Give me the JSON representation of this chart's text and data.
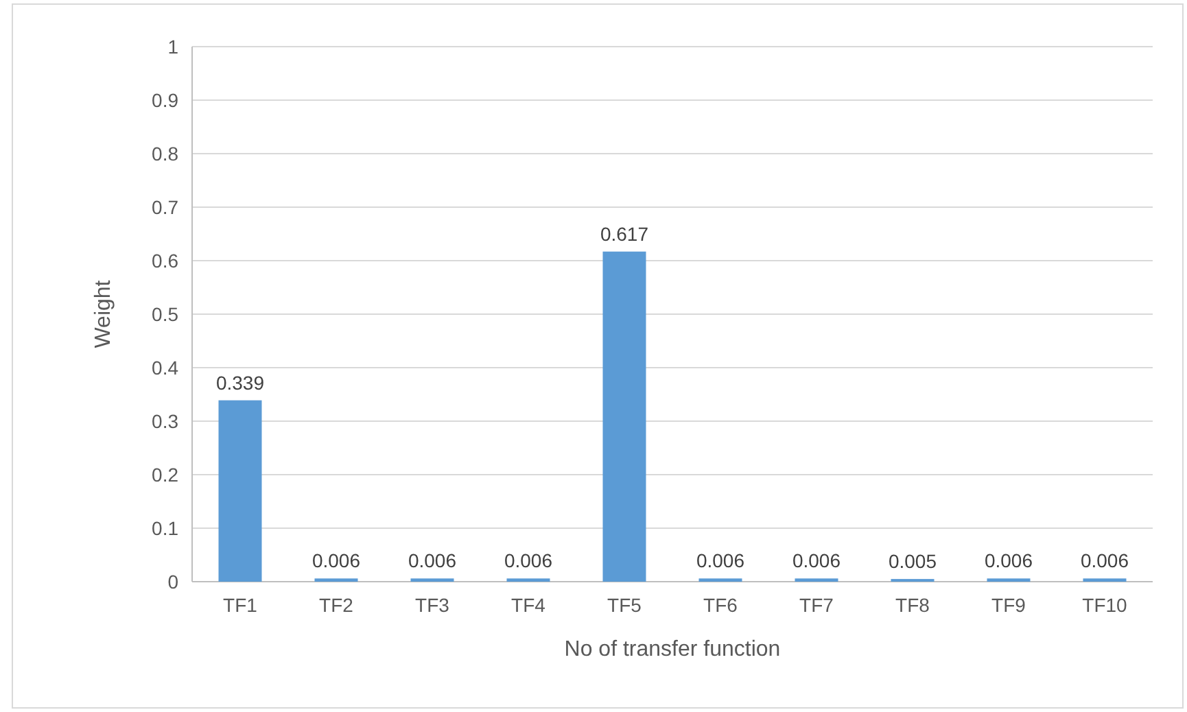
{
  "chart_data": {
    "type": "bar",
    "xlabel": "No of transfer function",
    "ylabel": "Weight",
    "categories": [
      "TF1",
      "TF2",
      "TF3",
      "TF4",
      "TF5",
      "TF6",
      "TF7",
      "TF8",
      "TF9",
      "TF10"
    ],
    "values": [
      0.339,
      0.006,
      0.006,
      0.006,
      0.617,
      0.006,
      0.006,
      0.005,
      0.006,
      0.006
    ],
    "color": "#5b9bd5",
    "ylim": [
      0,
      1
    ],
    "yticks": [
      0,
      0.1,
      0.2,
      0.3,
      0.4,
      0.5,
      0.6,
      0.7,
      0.8,
      0.9,
      1
    ],
    "grid": "y",
    "data_labels": true
  }
}
